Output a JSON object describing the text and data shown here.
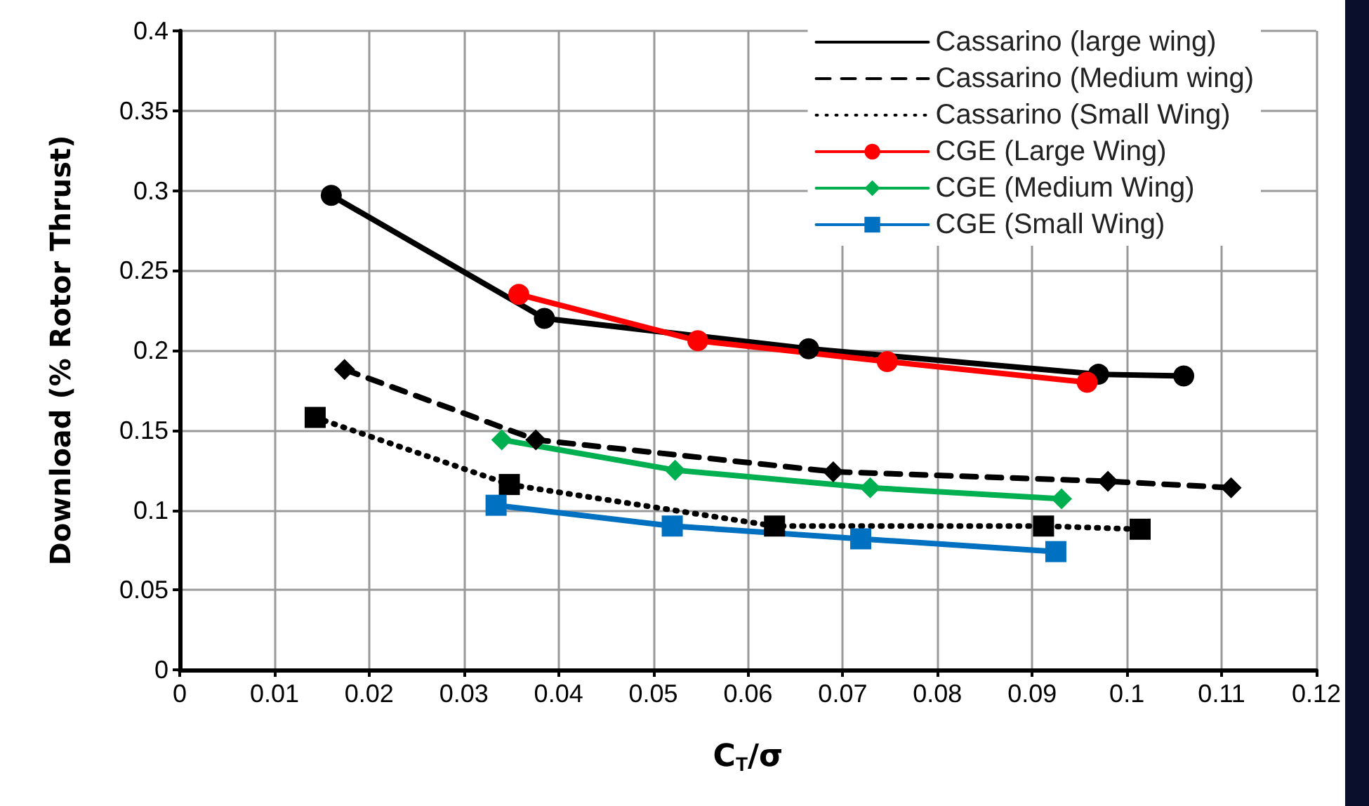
{
  "chart_data": {
    "type": "line",
    "xlabel": "C$_{T}$/σ",
    "ylabel": "Download (% Rotor Thrust)",
    "xlim": [
      0,
      0.12
    ],
    "xticks": [
      0,
      0.01,
      0.02,
      0.03,
      0.04,
      0.05,
      0.06,
      0.07,
      0.08,
      0.09,
      0.1,
      0.11,
      0.12
    ],
    "ylim": [
      0,
      0.4
    ],
    "yticks": [
      0,
      0.05,
      0.1,
      0.15,
      0.2,
      0.25,
      0.3,
      0.35,
      0.4
    ],
    "grid": true,
    "legend": "top right",
    "series": [
      {
        "name": "Cassarino (large wing)",
        "color": "#000000",
        "line_style": "solid",
        "marker": "circle",
        "x": [
          0.016,
          0.0385,
          0.0664,
          0.097,
          0.106
        ],
        "values": [
          0.297,
          0.22,
          0.201,
          0.185,
          0.184
        ]
      },
      {
        "name": "Cassarino (Medium wing)",
        "color": "#000000",
        "line_style": "dashed",
        "marker": "diamond",
        "x": [
          0.0174,
          0.0376,
          0.069,
          0.098,
          0.111
        ],
        "values": [
          0.188,
          0.144,
          0.124,
          0.118,
          0.114
        ]
      },
      {
        "name": "Cassarino (Small Wing)",
        "color": "#000000",
        "line_style": "dotted",
        "marker": "square",
        "x": [
          0.0143,
          0.0348,
          0.0628,
          0.0912,
          0.1014
        ],
        "values": [
          0.158,
          0.116,
          0.09,
          0.09,
          0.088
        ]
      },
      {
        "name": "CGE (Large Wing)",
        "color": "#ff0000",
        "line_style": "solid",
        "marker": "circle",
        "x": [
          0.0358,
          0.0547,
          0.0747,
          0.0958
        ],
        "values": [
          0.235,
          0.206,
          0.193,
          0.18
        ]
      },
      {
        "name": "CGE (Medium Wing)",
        "color": "#00b050",
        "line_style": "solid",
        "marker": "diamond",
        "x": [
          0.034,
          0.0523,
          0.0729,
          0.0931
        ],
        "values": [
          0.144,
          0.125,
          0.114,
          0.107
        ]
      },
      {
        "name": "CGE (Small Wing)",
        "color": "#0070c0",
        "line_style": "solid",
        "marker": "square",
        "x": [
          0.0334,
          0.052,
          0.0719,
          0.0925
        ],
        "values": [
          0.103,
          0.09,
          0.082,
          0.074
        ]
      }
    ]
  }
}
